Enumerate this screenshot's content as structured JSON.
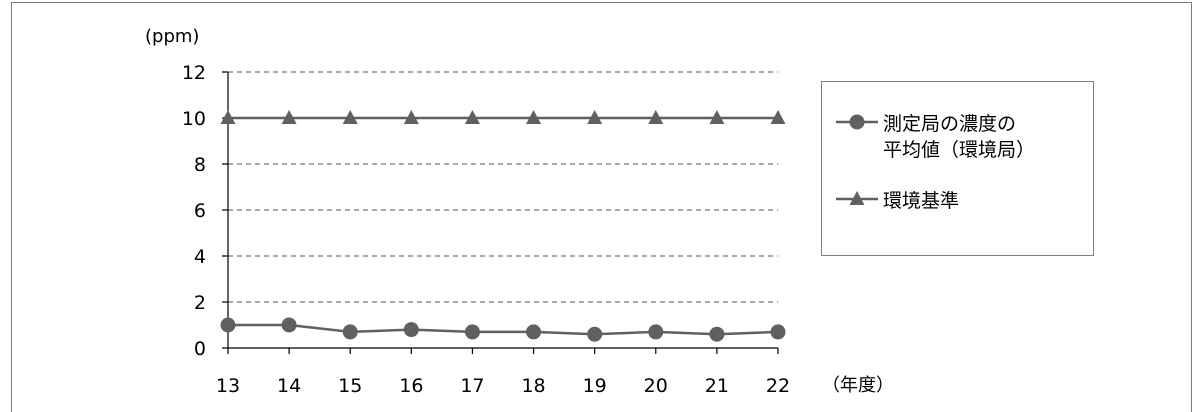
{
  "chart_data": {
    "type": "line",
    "x": [
      "13",
      "14",
      "15",
      "16",
      "17",
      "18",
      "19",
      "20",
      "21",
      "22"
    ],
    "xlabel": "（年度）",
    "ylabel": "(ppm)",
    "ylim": [
      0,
      12
    ],
    "yticks": [
      "0",
      "2",
      "4",
      "6",
      "8",
      "10",
      "12"
    ],
    "grid": true,
    "legend_position": "right",
    "series": [
      {
        "name_lines": [
          "測定局の濃度の",
          "平均値（環境局）"
        ],
        "marker": "circle",
        "color": "#606060",
        "values": [
          1.0,
          1.0,
          0.7,
          0.8,
          0.7,
          0.7,
          0.6,
          0.7,
          0.6,
          0.7
        ]
      },
      {
        "name_lines": [
          "環境基準"
        ],
        "marker": "triangle",
        "color": "#606060",
        "values": [
          10,
          10,
          10,
          10,
          10,
          10,
          10,
          10,
          10,
          10
        ]
      }
    ]
  }
}
